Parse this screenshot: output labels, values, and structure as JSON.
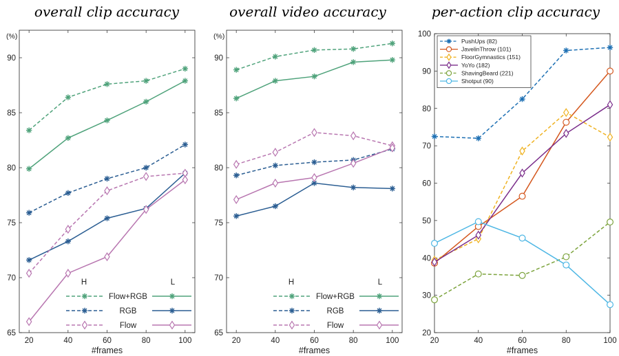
{
  "chart_data": [
    {
      "type": "line",
      "title": "overall clip accuracy",
      "xlabel": "#frames",
      "ylabel": "(%)",
      "x": [
        20,
        40,
        60,
        80,
        100
      ],
      "xlim": [
        15,
        105
      ],
      "ylim": [
        65,
        92.5
      ],
      "yticks": [
        65,
        70,
        75,
        80,
        85,
        90
      ],
      "legend": {
        "header_left": "H",
        "header_right": "L",
        "placement": "lower-right"
      },
      "series": [
        {
          "name": "Flow+RGB",
          "variant": "H",
          "style": "dashed",
          "marker": "star",
          "color": "#4ea27a",
          "values": [
            83.4,
            86.4,
            87.6,
            87.9,
            89.0
          ]
        },
        {
          "name": "Flow+RGB",
          "variant": "L",
          "style": "solid",
          "marker": "star",
          "color": "#4ea27a",
          "values": [
            79.9,
            82.7,
            84.3,
            86.0,
            87.9
          ]
        },
        {
          "name": "RGB",
          "variant": "H",
          "style": "dashed",
          "marker": "star",
          "color": "#2a5d92",
          "values": [
            75.9,
            77.7,
            79.0,
            80.0,
            82.1
          ]
        },
        {
          "name": "RGB",
          "variant": "L",
          "style": "solid",
          "marker": "star",
          "color": "#2a5d92",
          "values": [
            71.6,
            73.3,
            75.4,
            76.3,
            79.5
          ]
        },
        {
          "name": "Flow",
          "variant": "H",
          "style": "dashed",
          "marker": "diamond",
          "color": "#b876b0",
          "values": [
            70.4,
            74.4,
            77.9,
            79.2,
            79.5
          ]
        },
        {
          "name": "Flow",
          "variant": "L",
          "style": "solid",
          "marker": "diamond",
          "color": "#b876b0",
          "values": [
            66.0,
            70.4,
            71.9,
            76.2,
            78.9
          ]
        }
      ]
    },
    {
      "type": "line",
      "title": "overall video accuracy",
      "xlabel": "#frames",
      "ylabel": "(%)",
      "x": [
        20,
        40,
        60,
        80,
        100
      ],
      "xlim": [
        15,
        105
      ],
      "ylim": [
        65,
        92.5
      ],
      "yticks": [
        65,
        70,
        75,
        80,
        85,
        90
      ],
      "legend": {
        "header_left": "H",
        "header_right": "L",
        "placement": "lower-right"
      },
      "series": [
        {
          "name": "Flow+RGB",
          "variant": "H",
          "style": "dashed",
          "marker": "star",
          "color": "#4ea27a",
          "values": [
            88.9,
            90.1,
            90.7,
            90.8,
            91.3
          ]
        },
        {
          "name": "Flow+RGB",
          "variant": "L",
          "style": "solid",
          "marker": "star",
          "color": "#4ea27a",
          "values": [
            86.3,
            87.9,
            88.3,
            89.6,
            89.8
          ]
        },
        {
          "name": "RGB",
          "variant": "H",
          "style": "dashed",
          "marker": "star",
          "color": "#2a5d92",
          "values": [
            79.3,
            80.2,
            80.5,
            80.7,
            81.7
          ]
        },
        {
          "name": "RGB",
          "variant": "L",
          "style": "solid",
          "marker": "star",
          "color": "#2a5d92",
          "values": [
            75.6,
            76.5,
            78.6,
            78.2,
            78.1
          ]
        },
        {
          "name": "Flow",
          "variant": "H",
          "style": "dashed",
          "marker": "diamond",
          "color": "#b876b0",
          "values": [
            80.3,
            81.4,
            83.2,
            82.9,
            82.0
          ]
        },
        {
          "name": "Flow",
          "variant": "L",
          "style": "solid",
          "marker": "diamond",
          "color": "#b876b0",
          "values": [
            77.1,
            78.6,
            79.1,
            80.4,
            81.8
          ]
        }
      ]
    },
    {
      "type": "line",
      "title": "per-action clip accuracy",
      "xlabel": "#frames",
      "ylabel": "",
      "x": [
        20,
        40,
        60,
        80,
        100
      ],
      "xlim": [
        20,
        100
      ],
      "ylim": [
        20,
        100
      ],
      "yticks": [
        20,
        30,
        40,
        50,
        60,
        70,
        80,
        90,
        100
      ],
      "legend": {
        "placement": "top-left"
      },
      "series": [
        {
          "name": "PushUps (82)",
          "style": "dashed",
          "marker": "star",
          "color": "#1c6fb3",
          "values": [
            72.5,
            72.0,
            82.5,
            95.5,
            96.3
          ]
        },
        {
          "name": "JavelinThrow (101)",
          "style": "solid",
          "marker": "circle",
          "color": "#d4571d",
          "values": [
            38.6,
            48.4,
            56.5,
            76.3,
            90.0
          ]
        },
        {
          "name": "FloorGymnastics (151)",
          "style": "dashed",
          "marker": "diamond",
          "color": "#efb221",
          "values": [
            39.4,
            45.1,
            68.6,
            78.9,
            72.3
          ]
        },
        {
          "name": "YoYo (182)",
          "style": "solid",
          "marker": "diamond",
          "color": "#7a2d8a",
          "values": [
            38.9,
            46.1,
            62.7,
            73.3,
            81.0
          ]
        },
        {
          "name": "ShavingBeard (221)",
          "style": "dashed",
          "marker": "circle",
          "color": "#7ca33c",
          "values": [
            28.8,
            35.7,
            35.3,
            40.3,
            49.6
          ]
        },
        {
          "name": "Shotput (90)",
          "style": "solid",
          "marker": "circle",
          "color": "#4cb6e4",
          "values": [
            43.9,
            49.7,
            45.3,
            38.1,
            27.5
          ]
        }
      ]
    }
  ]
}
